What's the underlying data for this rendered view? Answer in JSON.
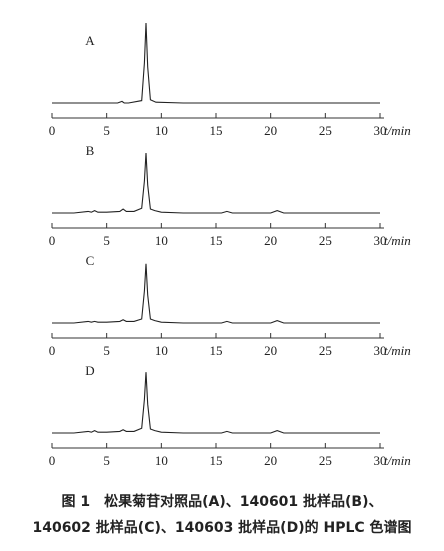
{
  "chart_data": [
    {
      "type": "line",
      "label": "A",
      "xlabel": "t/min",
      "xlim": [
        0,
        30
      ],
      "xticks": [
        0,
        5,
        10,
        15,
        20,
        25,
        30
      ],
      "ylim": [
        0,
        100
      ],
      "color": "#222222",
      "x": [
        0,
        3,
        6,
        6.4,
        6.6,
        7,
        8.2,
        8.45,
        8.6,
        8.75,
        9,
        9.5,
        12,
        20,
        30
      ],
      "values": [
        0,
        0,
        0,
        2,
        0,
        0,
        3,
        50,
        100,
        45,
        4,
        1,
        0,
        0,
        0
      ]
    },
    {
      "type": "line",
      "label": "B",
      "xlabel": "t/min",
      "xlim": [
        0,
        30
      ],
      "xticks": [
        0,
        5,
        10,
        15,
        20,
        25,
        30
      ],
      "ylim": [
        0,
        100
      ],
      "color": "#222222",
      "x": [
        0,
        2,
        3.3,
        3.6,
        3.9,
        4.2,
        5,
        6.2,
        6.5,
        6.8,
        7.5,
        8.2,
        8.45,
        8.6,
        8.75,
        9,
        9.4,
        10,
        12,
        15.5,
        16,
        16.5,
        20,
        20.6,
        21.2,
        25,
        30
      ],
      "values": [
        0,
        0,
        2,
        1,
        3,
        1,
        1,
        2,
        5,
        2,
        2,
        6,
        40,
        75,
        35,
        5,
        3,
        1,
        0,
        0,
        2,
        0,
        0,
        3,
        0,
        0,
        0
      ]
    },
    {
      "type": "line",
      "label": "C",
      "xlabel": "t/min",
      "xlim": [
        0,
        30
      ],
      "xticks": [
        0,
        5,
        10,
        15,
        20,
        25,
        30
      ],
      "ylim": [
        0,
        100
      ],
      "color": "#222222",
      "x": [
        0,
        2,
        3.3,
        3.6,
        3.9,
        4.2,
        5,
        6.2,
        6.5,
        6.8,
        7.5,
        8.2,
        8.45,
        8.6,
        8.75,
        9,
        9.4,
        10,
        12,
        15.5,
        16,
        16.5,
        20,
        20.6,
        21.2,
        25,
        30
      ],
      "values": [
        0,
        0,
        2,
        1,
        2,
        1,
        1,
        2,
        4,
        2,
        2,
        5,
        40,
        74,
        35,
        5,
        3,
        1,
        0,
        0,
        2,
        0,
        0,
        3,
        0,
        0,
        0
      ]
    },
    {
      "type": "line",
      "label": "D",
      "xlabel": "t/min",
      "xlim": [
        0,
        30
      ],
      "xticks": [
        0,
        5,
        10,
        15,
        20,
        25,
        30
      ],
      "ylim": [
        0,
        100
      ],
      "color": "#222222",
      "x": [
        0,
        2,
        3.3,
        3.6,
        3.9,
        4.2,
        5,
        6.2,
        6.5,
        6.8,
        7.5,
        8.2,
        8.45,
        8.6,
        8.75,
        9,
        9.4,
        10,
        12,
        15.5,
        16,
        16.5,
        20,
        20.6,
        21.2,
        25,
        30
      ],
      "values": [
        0,
        0,
        2,
        1,
        3,
        1,
        1,
        2,
        4,
        2,
        2,
        6,
        42,
        76,
        36,
        5,
        3,
        1,
        0,
        0,
        2,
        0,
        0,
        3,
        0,
        0,
        0
      ]
    }
  ],
  "caption": [
    "图 1　松果菊苷对照品(A)、140601 批样品(B)、",
    "140602 批样品(C)、140603 批样品(D)的 HPLC 色谱图"
  ]
}
